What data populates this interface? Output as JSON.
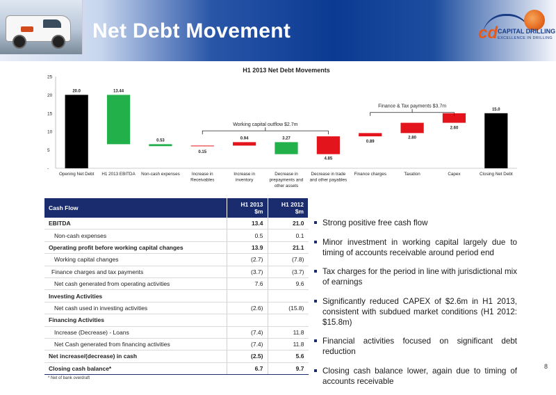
{
  "header": {
    "title": "Net Debt Movement",
    "brand_name": "CAPITAL DRILLING",
    "brand_tagline": "EXCELLENCE IN DRILLING"
  },
  "chart_data": {
    "type": "bar",
    "subtype": "waterfall",
    "title": "H1 2013 Net Debt Movements",
    "xlabel": "",
    "ylabel": "",
    "ylim": [
      0,
      25
    ],
    "yticks": [
      "-",
      "5",
      "10",
      "15",
      "20",
      "25"
    ],
    "grid": false,
    "legend": "none",
    "categories": [
      "Opening Net Debt",
      "H1 2013 EBITDA",
      "Non-cash expenses",
      "Increase in Receivables",
      "Increase in inventory",
      "Decrease in prepayments and other assets",
      "Decrease in trade and other payables",
      "Finance charges",
      "Taxation",
      "Capex",
      "Closing Net Debt"
    ],
    "category_lines": [
      [
        "Opening Net Debt"
      ],
      [
        "H1 2013 EBITDA"
      ],
      [
        "Non-cash expenses"
      ],
      [
        "Increase in",
        "Receivables"
      ],
      [
        "Increase in",
        "inventory"
      ],
      [
        "Decrease in",
        "prepayments and",
        "other assets"
      ],
      [
        "Decrease in trade",
        "and other payables"
      ],
      [
        "Finance charges"
      ],
      [
        "Taxation"
      ],
      [
        "Capex"
      ],
      [
        "Closing Net Debt"
      ]
    ],
    "bars": [
      {
        "bottom": 0,
        "top": 20.0,
        "label": "20.0",
        "kind": "total"
      },
      {
        "bottom": 6.56,
        "top": 20.0,
        "label": "13.44",
        "kind": "decrease"
      },
      {
        "bottom": 6.03,
        "top": 6.56,
        "label": "0.53",
        "kind": "decrease"
      },
      {
        "bottom": 6.03,
        "top": 6.18,
        "label": "0.15",
        "kind": "increase"
      },
      {
        "bottom": 6.18,
        "top": 7.12,
        "label": "0.94",
        "kind": "increase"
      },
      {
        "bottom": 3.85,
        "top": 7.12,
        "label": "3.27",
        "kind": "decrease"
      },
      {
        "bottom": 3.85,
        "top": 8.7,
        "label": "4.85",
        "kind": "increase"
      },
      {
        "bottom": 8.7,
        "top": 9.59,
        "label": "0.89",
        "kind": "increase"
      },
      {
        "bottom": 9.59,
        "top": 12.39,
        "label": "2.80",
        "kind": "increase"
      },
      {
        "bottom": 12.39,
        "top": 14.99,
        "label": "2.60",
        "kind": "increase"
      },
      {
        "bottom": 0,
        "top": 15.0,
        "label": "15.0",
        "kind": "total"
      }
    ],
    "colors": {
      "total": "#000000",
      "decrease": "#22b04b",
      "increase": "#e3141b"
    },
    "annotations": [
      {
        "text": "Working capital outflow $2.7m",
        "from": 3,
        "to": 6,
        "at": 10.2
      },
      {
        "text": "Finance & Tax payments $3.7m",
        "from": 7,
        "to": 9,
        "at": 15.2
      }
    ]
  },
  "table": {
    "headers": [
      "Cash Flow",
      "H1 2013 $m",
      "H1 2012 $m"
    ],
    "header_lines": [
      [
        "Cash Flow"
      ],
      [
        "H1 2013",
        "$m"
      ],
      [
        "H1 2012",
        "$m"
      ]
    ],
    "rows": [
      {
        "label": "EBITDA",
        "a": "13.4",
        "b": "21.0",
        "style": "bold"
      },
      {
        "label": "Non-cash expenses",
        "a": "0.5",
        "b": "0.1",
        "style": "indent"
      },
      {
        "label": "Operating profit before working capital changes",
        "a": "13.9",
        "b": "21.1",
        "style": "bold"
      },
      {
        "label": "Working capital changes",
        "a": "(2.7)",
        "b": "(7.8)",
        "style": "indent"
      },
      {
        "label": "Finance charges and tax payments",
        "a": "(3.7)",
        "b": "(3.7)",
        "style": "indent-small"
      },
      {
        "label": "Net cash generated from operating activities",
        "a": "7.6",
        "b": "9.6",
        "style": "indent"
      },
      {
        "label": "Investing Activities",
        "a": "",
        "b": "",
        "style": "section"
      },
      {
        "label": "Net cash used in investing activities",
        "a": "(2.6)",
        "b": "(15.8)",
        "style": "indent"
      },
      {
        "label": "Financing Activities",
        "a": "",
        "b": "",
        "style": "section"
      },
      {
        "label": "Increase (Decrease) - Loans",
        "a": "(7.4)",
        "b": "11.8",
        "style": "indent"
      },
      {
        "label": "Net Cash generated from financing activities",
        "a": "(7.4)",
        "b": "11.8",
        "style": "indent"
      },
      {
        "label": "Net increase/(decrease) in cash",
        "a": "(2.5)",
        "b": "5.6",
        "style": "bold-topline"
      },
      {
        "label": "Closing cash balance*",
        "a": "6.7",
        "b": "9.7",
        "style": "bold-last"
      }
    ],
    "footnote": "* Net of bank overdraft"
  },
  "bullets": [
    "Strong positive free cash flow",
    "Minor investment in working capital largely due to timing of accounts receivable around period end",
    "Tax charges for the period in line with jurisdictional mix of earnings",
    "Significantly reduced CAPEX of $2.6m in H1 2013, consistent with subdued market conditions (H1 2012: $15.8m)",
    "Financial activities focused on significant debt reduction",
    "Closing cash balance lower, again due to timing of accounts receivable"
  ],
  "page_number": "8"
}
